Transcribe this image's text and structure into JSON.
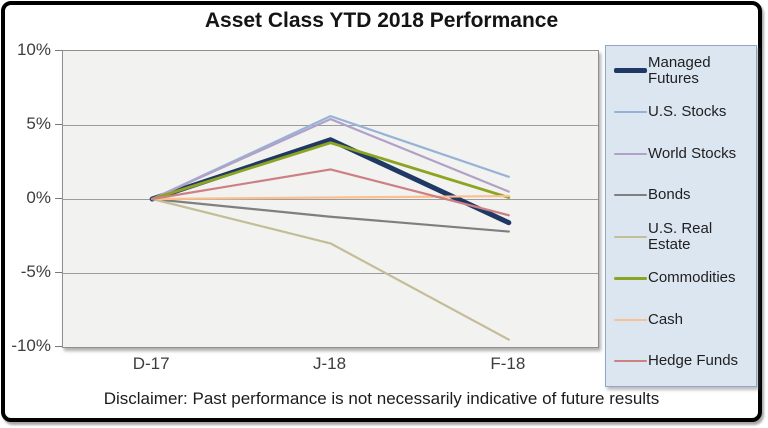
{
  "chart_data": {
    "type": "line",
    "title": "Asset Class YTD 2018 Performance",
    "categories": [
      "D-17",
      "J-18",
      "F-18"
    ],
    "y_ticks": [
      "10%",
      "5%",
      "0%",
      "-5%",
      "-10%"
    ],
    "ylim": [
      -10,
      10
    ],
    "grid": true,
    "grid_color": "#9c9c9c",
    "plot_bg": "#f2f2f0",
    "legend_position": "right",
    "legend_bg": "#dce6f1",
    "series": [
      {
        "name": "Managed Futures",
        "color": "#1f3864",
        "thickness": 5,
        "values": [
          0,
          4.0,
          -1.6
        ]
      },
      {
        "name": "U.S. Stocks",
        "color": "#95b3d7",
        "thickness": 2.2,
        "values": [
          0,
          5.6,
          1.5
        ]
      },
      {
        "name": "World Stocks",
        "color": "#b2a1c7",
        "thickness": 2.2,
        "values": [
          0,
          5.4,
          0.5
        ]
      },
      {
        "name": "Bonds",
        "color": "#7f7f7f",
        "thickness": 2.2,
        "values": [
          0,
          -1.2,
          -2.2
        ]
      },
      {
        "name": "U.S. Real Estate",
        "color": "#c4bd97",
        "thickness": 2.2,
        "values": [
          0,
          -3.0,
          -9.5
        ]
      },
      {
        "name": "Commodities",
        "color": "#8da423",
        "thickness": 2.8,
        "values": [
          0,
          3.8,
          0.1
        ]
      },
      {
        "name": "Cash",
        "color": "#fac090",
        "thickness": 2.2,
        "values": [
          0,
          0.1,
          0.2
        ]
      },
      {
        "name": "Hedge Funds",
        "color": "#cd8084",
        "thickness": 2.2,
        "values": [
          0,
          2.0,
          -1.1
        ]
      }
    ]
  },
  "disclaimer": "Disclaimer: Past performance is not necessarily indicative of future results"
}
